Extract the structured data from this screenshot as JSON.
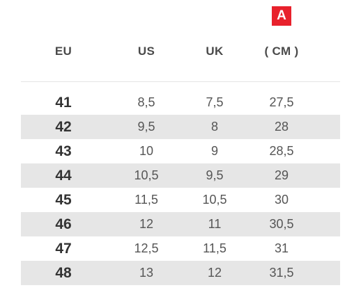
{
  "badge": {
    "label": "A",
    "color": "#e8212c"
  },
  "table": {
    "headers": [
      "EU",
      "US",
      "UK",
      "( CM )"
    ],
    "rows": [
      {
        "eu": "41",
        "us": "8,5",
        "uk": "7,5",
        "cm": "27,5"
      },
      {
        "eu": "42",
        "us": "9,5",
        "uk": "8",
        "cm": "28"
      },
      {
        "eu": "43",
        "us": "10",
        "uk": "9",
        "cm": "28,5"
      },
      {
        "eu": "44",
        "us": "10,5",
        "uk": "9,5",
        "cm": "29"
      },
      {
        "eu": "45",
        "us": "11,5",
        "uk": "10,5",
        "cm": "30"
      },
      {
        "eu": "46",
        "us": "12",
        "uk": "11",
        "cm": "30,5"
      },
      {
        "eu": "47",
        "us": "12,5",
        "uk": "11,5",
        "cm": "31"
      },
      {
        "eu": "48",
        "us": "13",
        "uk": "12",
        "cm": "31,5"
      }
    ]
  }
}
